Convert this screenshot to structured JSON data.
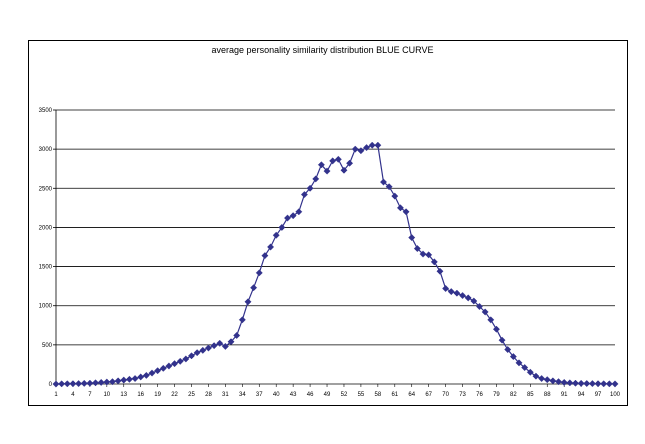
{
  "chart_data": {
    "type": "line",
    "title": "average personality similarity distribution BLUE CURVE",
    "xlabel": "",
    "ylabel": "",
    "ylim": [
      0,
      3500
    ],
    "yticks": [
      0,
      500,
      1000,
      1500,
      2000,
      2500,
      3000,
      3500
    ],
    "xticks": [
      1,
      4,
      7,
      10,
      13,
      16,
      19,
      22,
      25,
      28,
      31,
      34,
      37,
      40,
      43,
      46,
      49,
      52,
      55,
      58,
      61,
      64,
      67,
      70,
      73,
      76,
      79,
      82,
      85,
      88,
      91,
      94,
      97,
      100
    ],
    "grid": "horizontal",
    "marker": "diamond",
    "colors": {
      "series": "#32328c",
      "grid": "#000000"
    },
    "series": [
      {
        "x": [
          1,
          2,
          3,
          4,
          5,
          6,
          7,
          8,
          9,
          10,
          11,
          12,
          13,
          14,
          15,
          16,
          17,
          18,
          19,
          20,
          21,
          22,
          23,
          24,
          25,
          26,
          27,
          28,
          29,
          30,
          31,
          32,
          33,
          34,
          35,
          36,
          37,
          38,
          39,
          40,
          41,
          42,
          43,
          44,
          45,
          46,
          47,
          48,
          49,
          50,
          51,
          52,
          53,
          54,
          55,
          56,
          57,
          58,
          59,
          60,
          61,
          62,
          63,
          64,
          65,
          66,
          67,
          68,
          69,
          70,
          71,
          72,
          73,
          74,
          75,
          76,
          77,
          78,
          79,
          80,
          81,
          82,
          83,
          84,
          85,
          86,
          87,
          88,
          89,
          90,
          91,
          92,
          93,
          94,
          95,
          96,
          97,
          98,
          99,
          100
        ],
        "values": [
          0,
          2,
          3,
          4,
          5,
          8,
          10,
          15,
          20,
          25,
          30,
          40,
          50,
          60,
          70,
          90,
          110,
          140,
          170,
          200,
          230,
          260,
          290,
          320,
          360,
          400,
          430,
          460,
          490,
          520,
          480,
          540,
          620,
          820,
          1050,
          1230,
          1420,
          1640,
          1750,
          1900,
          2000,
          2120,
          2150,
          2200,
          2420,
          2500,
          2620,
          2800,
          2720,
          2850,
          2870,
          2730,
          2820,
          3000,
          2980,
          3020,
          3050,
          3050,
          2580,
          2520,
          2400,
          2250,
          2200,
          1870,
          1730,
          1660,
          1650,
          1560,
          1440,
          1220,
          1180,
          1160,
          1130,
          1100,
          1060,
          990,
          920,
          820,
          700,
          560,
          440,
          350,
          270,
          210,
          150,
          100,
          70,
          55,
          40,
          30,
          20,
          15,
          10,
          8,
          6,
          5,
          4,
          3,
          2,
          1
        ]
      }
    ]
  }
}
